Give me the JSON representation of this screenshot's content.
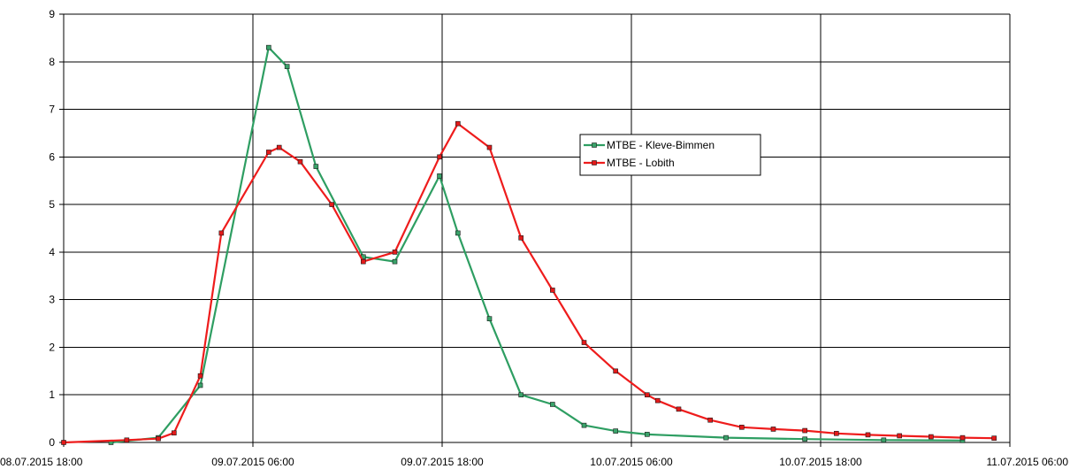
{
  "chart_data": {
    "type": "line",
    "title": "",
    "xlabel": "",
    "ylabel": "",
    "x_axis": {
      "type": "datetime",
      "range": [
        "2015-07-08T18:00",
        "2015-07-11T06:00"
      ],
      "ticks": [
        {
          "value": "2015-07-08T18:00",
          "label": "08.07.2015 18:00"
        },
        {
          "value": "2015-07-09T06:00",
          "label": "09.07.2015 06:00"
        },
        {
          "value": "2015-07-09T18:00",
          "label": "09.07.2015 18:00"
        },
        {
          "value": "2015-07-10T06:00",
          "label": "10.07.2015 06:00"
        },
        {
          "value": "2015-07-10T18:00",
          "label": "10.07.2015 18:00"
        },
        {
          "value": "2015-07-11T06:00",
          "label": "11.07.2015 06:00"
        }
      ]
    },
    "y_axis": {
      "range": [
        0,
        9
      ],
      "ticks": [
        0,
        1,
        2,
        3,
        4,
        5,
        6,
        7,
        8,
        9
      ]
    },
    "grid": true,
    "legend": "upper-right-center",
    "series": [
      {
        "name": "MTBE - Kleve-Bimmen",
        "color": "#2e9e62",
        "marker_fill": "#3aa36a",
        "points": [
          {
            "x": "2015-07-08T21:00",
            "y": 0.0
          },
          {
            "x": "2015-07-09T00:00",
            "y": 0.1
          },
          {
            "x": "2015-07-09T02:40",
            "y": 1.2
          },
          {
            "x": "2015-07-09T07:00",
            "y": 8.3
          },
          {
            "x": "2015-07-09T08:10",
            "y": 7.9
          },
          {
            "x": "2015-07-09T10:00",
            "y": 5.8
          },
          {
            "x": "2015-07-09T13:00",
            "y": 3.9
          },
          {
            "x": "2015-07-09T15:00",
            "y": 3.8
          },
          {
            "x": "2015-07-09T17:50",
            "y": 5.6
          },
          {
            "x": "2015-07-09T19:00",
            "y": 4.4
          },
          {
            "x": "2015-07-09T21:00",
            "y": 2.6
          },
          {
            "x": "2015-07-09T23:00",
            "y": 1.0
          },
          {
            "x": "2015-07-10T01:00",
            "y": 0.8
          },
          {
            "x": "2015-07-10T03:00",
            "y": 0.36
          },
          {
            "x": "2015-07-10T05:00",
            "y": 0.24
          },
          {
            "x": "2015-07-10T07:00",
            "y": 0.17
          },
          {
            "x": "2015-07-10T12:00",
            "y": 0.1
          },
          {
            "x": "2015-07-10T17:00",
            "y": 0.07
          },
          {
            "x": "2015-07-10T22:00",
            "y": 0.05
          },
          {
            "x": "2015-07-11T03:00",
            "y": 0.04
          }
        ]
      },
      {
        "name": "MTBE - Lobith",
        "color": "#ee1c1c",
        "marker_fill": "#e31a1a",
        "points": [
          {
            "x": "2015-07-08T18:00",
            "y": 0.0
          },
          {
            "x": "2015-07-08T22:00",
            "y": 0.05
          },
          {
            "x": "2015-07-09T00:00",
            "y": 0.08
          },
          {
            "x": "2015-07-09T01:00",
            "y": 0.2
          },
          {
            "x": "2015-07-09T02:40",
            "y": 1.4
          },
          {
            "x": "2015-07-09T04:00",
            "y": 4.4
          },
          {
            "x": "2015-07-09T07:00",
            "y": 6.1
          },
          {
            "x": "2015-07-09T07:40",
            "y": 6.2
          },
          {
            "x": "2015-07-09T09:00",
            "y": 5.9
          },
          {
            "x": "2015-07-09T11:00",
            "y": 5.0
          },
          {
            "x": "2015-07-09T13:00",
            "y": 3.8
          },
          {
            "x": "2015-07-09T15:00",
            "y": 4.0
          },
          {
            "x": "2015-07-09T17:50",
            "y": 6.0
          },
          {
            "x": "2015-07-09T19:00",
            "y": 6.7
          },
          {
            "x": "2015-07-09T21:00",
            "y": 6.2
          },
          {
            "x": "2015-07-09T23:00",
            "y": 4.3
          },
          {
            "x": "2015-07-10T01:00",
            "y": 3.2
          },
          {
            "x": "2015-07-10T03:00",
            "y": 2.1
          },
          {
            "x": "2015-07-10T05:00",
            "y": 1.5
          },
          {
            "x": "2015-07-10T07:00",
            "y": 1.0
          },
          {
            "x": "2015-07-10T07:40",
            "y": 0.88
          },
          {
            "x": "2015-07-10T09:00",
            "y": 0.7
          },
          {
            "x": "2015-07-10T11:00",
            "y": 0.47
          },
          {
            "x": "2015-07-10T13:00",
            "y": 0.32
          },
          {
            "x": "2015-07-10T15:00",
            "y": 0.28
          },
          {
            "x": "2015-07-10T17:00",
            "y": 0.25
          },
          {
            "x": "2015-07-10T19:00",
            "y": 0.19
          },
          {
            "x": "2015-07-10T21:00",
            "y": 0.16
          },
          {
            "x": "2015-07-10T23:00",
            "y": 0.14
          },
          {
            "x": "2015-07-11T01:00",
            "y": 0.12
          },
          {
            "x": "2015-07-11T03:00",
            "y": 0.1
          },
          {
            "x": "2015-07-11T05:00",
            "y": 0.09
          }
        ]
      }
    ]
  }
}
